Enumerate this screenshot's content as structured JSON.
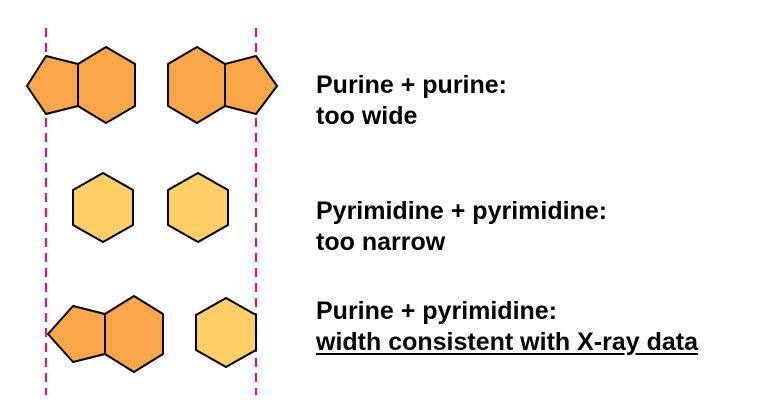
{
  "rows": [
    {
      "pairing": "purine-purine",
      "caption_line1": "Purine + purine:",
      "caption_line2": "too wide",
      "caption_line2_underlined": false
    },
    {
      "pairing": "pyrimidine-pyrimidine",
      "caption_line1": "Pyrimidine + pyrimidine:",
      "caption_line2": "too narrow",
      "caption_line2_underlined": false
    },
    {
      "pairing": "purine-pyrimidine",
      "caption_line1": "Purine + pyrimidine:",
      "caption_line2": "width consistent with X-ray data",
      "caption_line2_underlined": true
    }
  ],
  "colors": {
    "purine_fill": "#F9A64A",
    "pyrimidine_fill": "#FDCF66",
    "outline": "#000000",
    "guide_line": "#E0157F"
  }
}
